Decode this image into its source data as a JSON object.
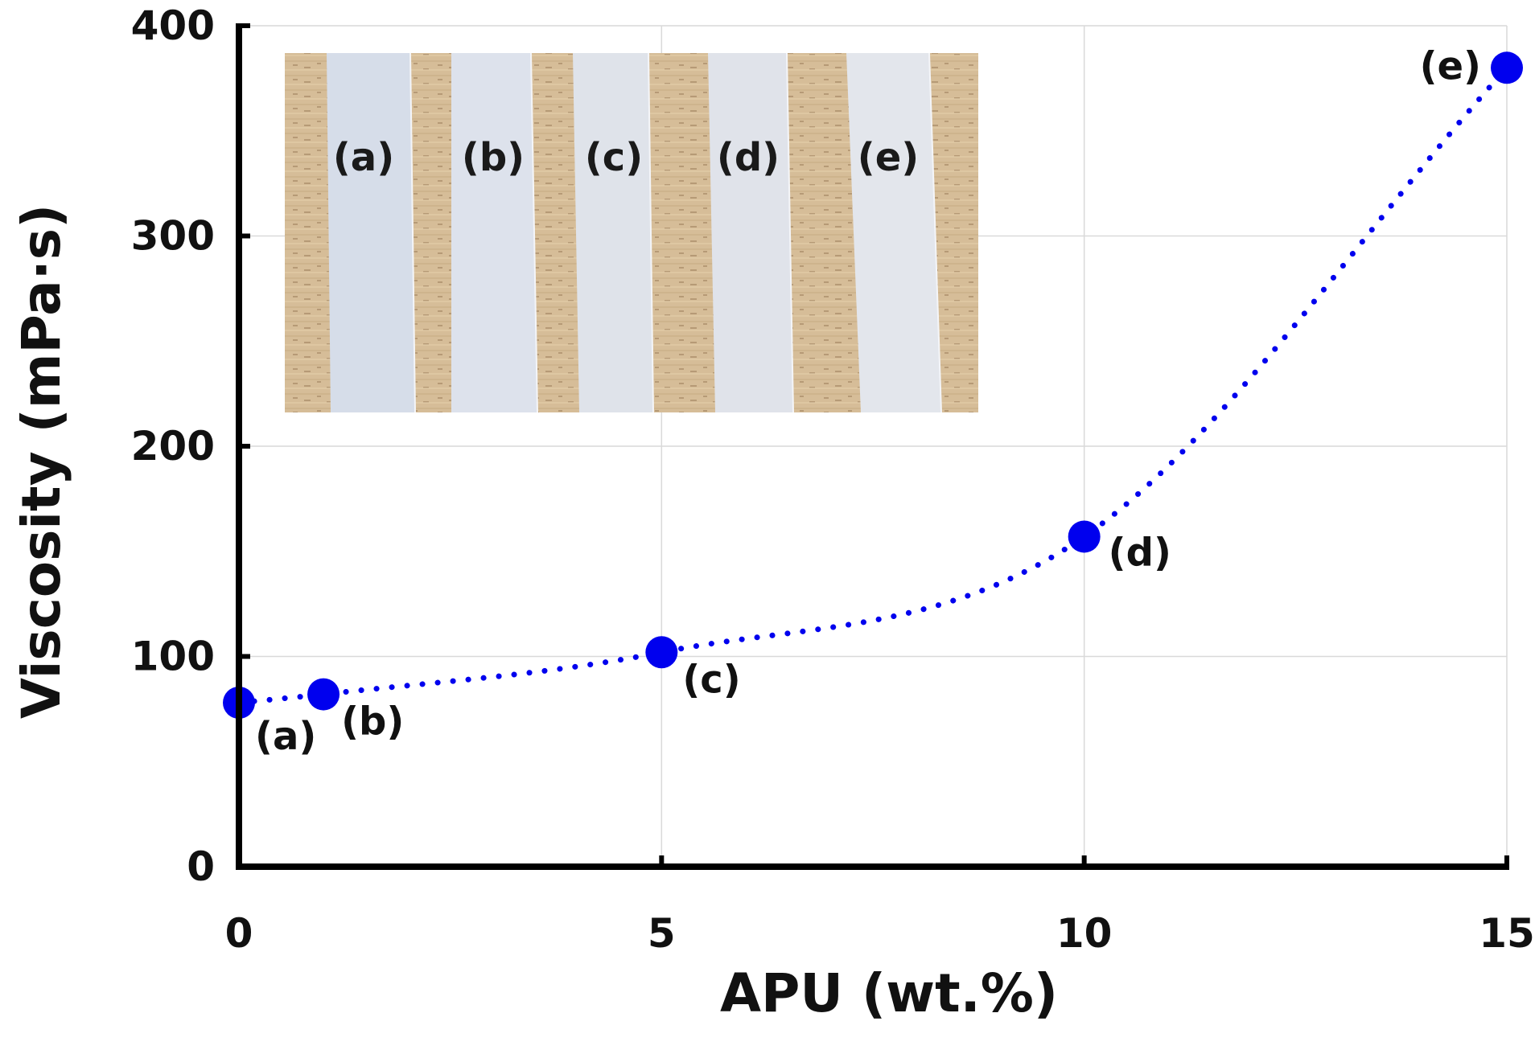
{
  "chart_data": {
    "type": "scatter",
    "title": "",
    "xlabel": "APU (wt.%)",
    "ylabel": "Viscosity (mPa·s)",
    "xlim": [
      0,
      15
    ],
    "ylim": [
      0,
      400
    ],
    "xticks": [
      0,
      5,
      10,
      15
    ],
    "yticks": [
      0,
      100,
      200,
      300,
      400
    ],
    "grid": true,
    "line_style": "dotted",
    "colors": {
      "series": "#0000ee",
      "axis": "#000000",
      "grid": "#d9d9d9"
    },
    "series": [
      {
        "name": "Viscosity",
        "points": [
          {
            "x": 0,
            "y": 78,
            "label": "(a)"
          },
          {
            "x": 1,
            "y": 82,
            "label": "(b)"
          },
          {
            "x": 5,
            "y": 102,
            "label": "(c)"
          },
          {
            "x": 10,
            "y": 157,
            "label": "(d)"
          },
          {
            "x": 15,
            "y": 380,
            "label": "(e)"
          }
        ]
      }
    ],
    "inset": {
      "description_labels": [
        "(a)",
        "(b)",
        "(c)",
        "(d)",
        "(e)"
      ],
      "wood_color": "#d6bd98",
      "film_colors": [
        "#d6dde9",
        "#dde2ec",
        "#dfe3ea",
        "#e0e3ea",
        "#e3e6ec"
      ]
    }
  }
}
